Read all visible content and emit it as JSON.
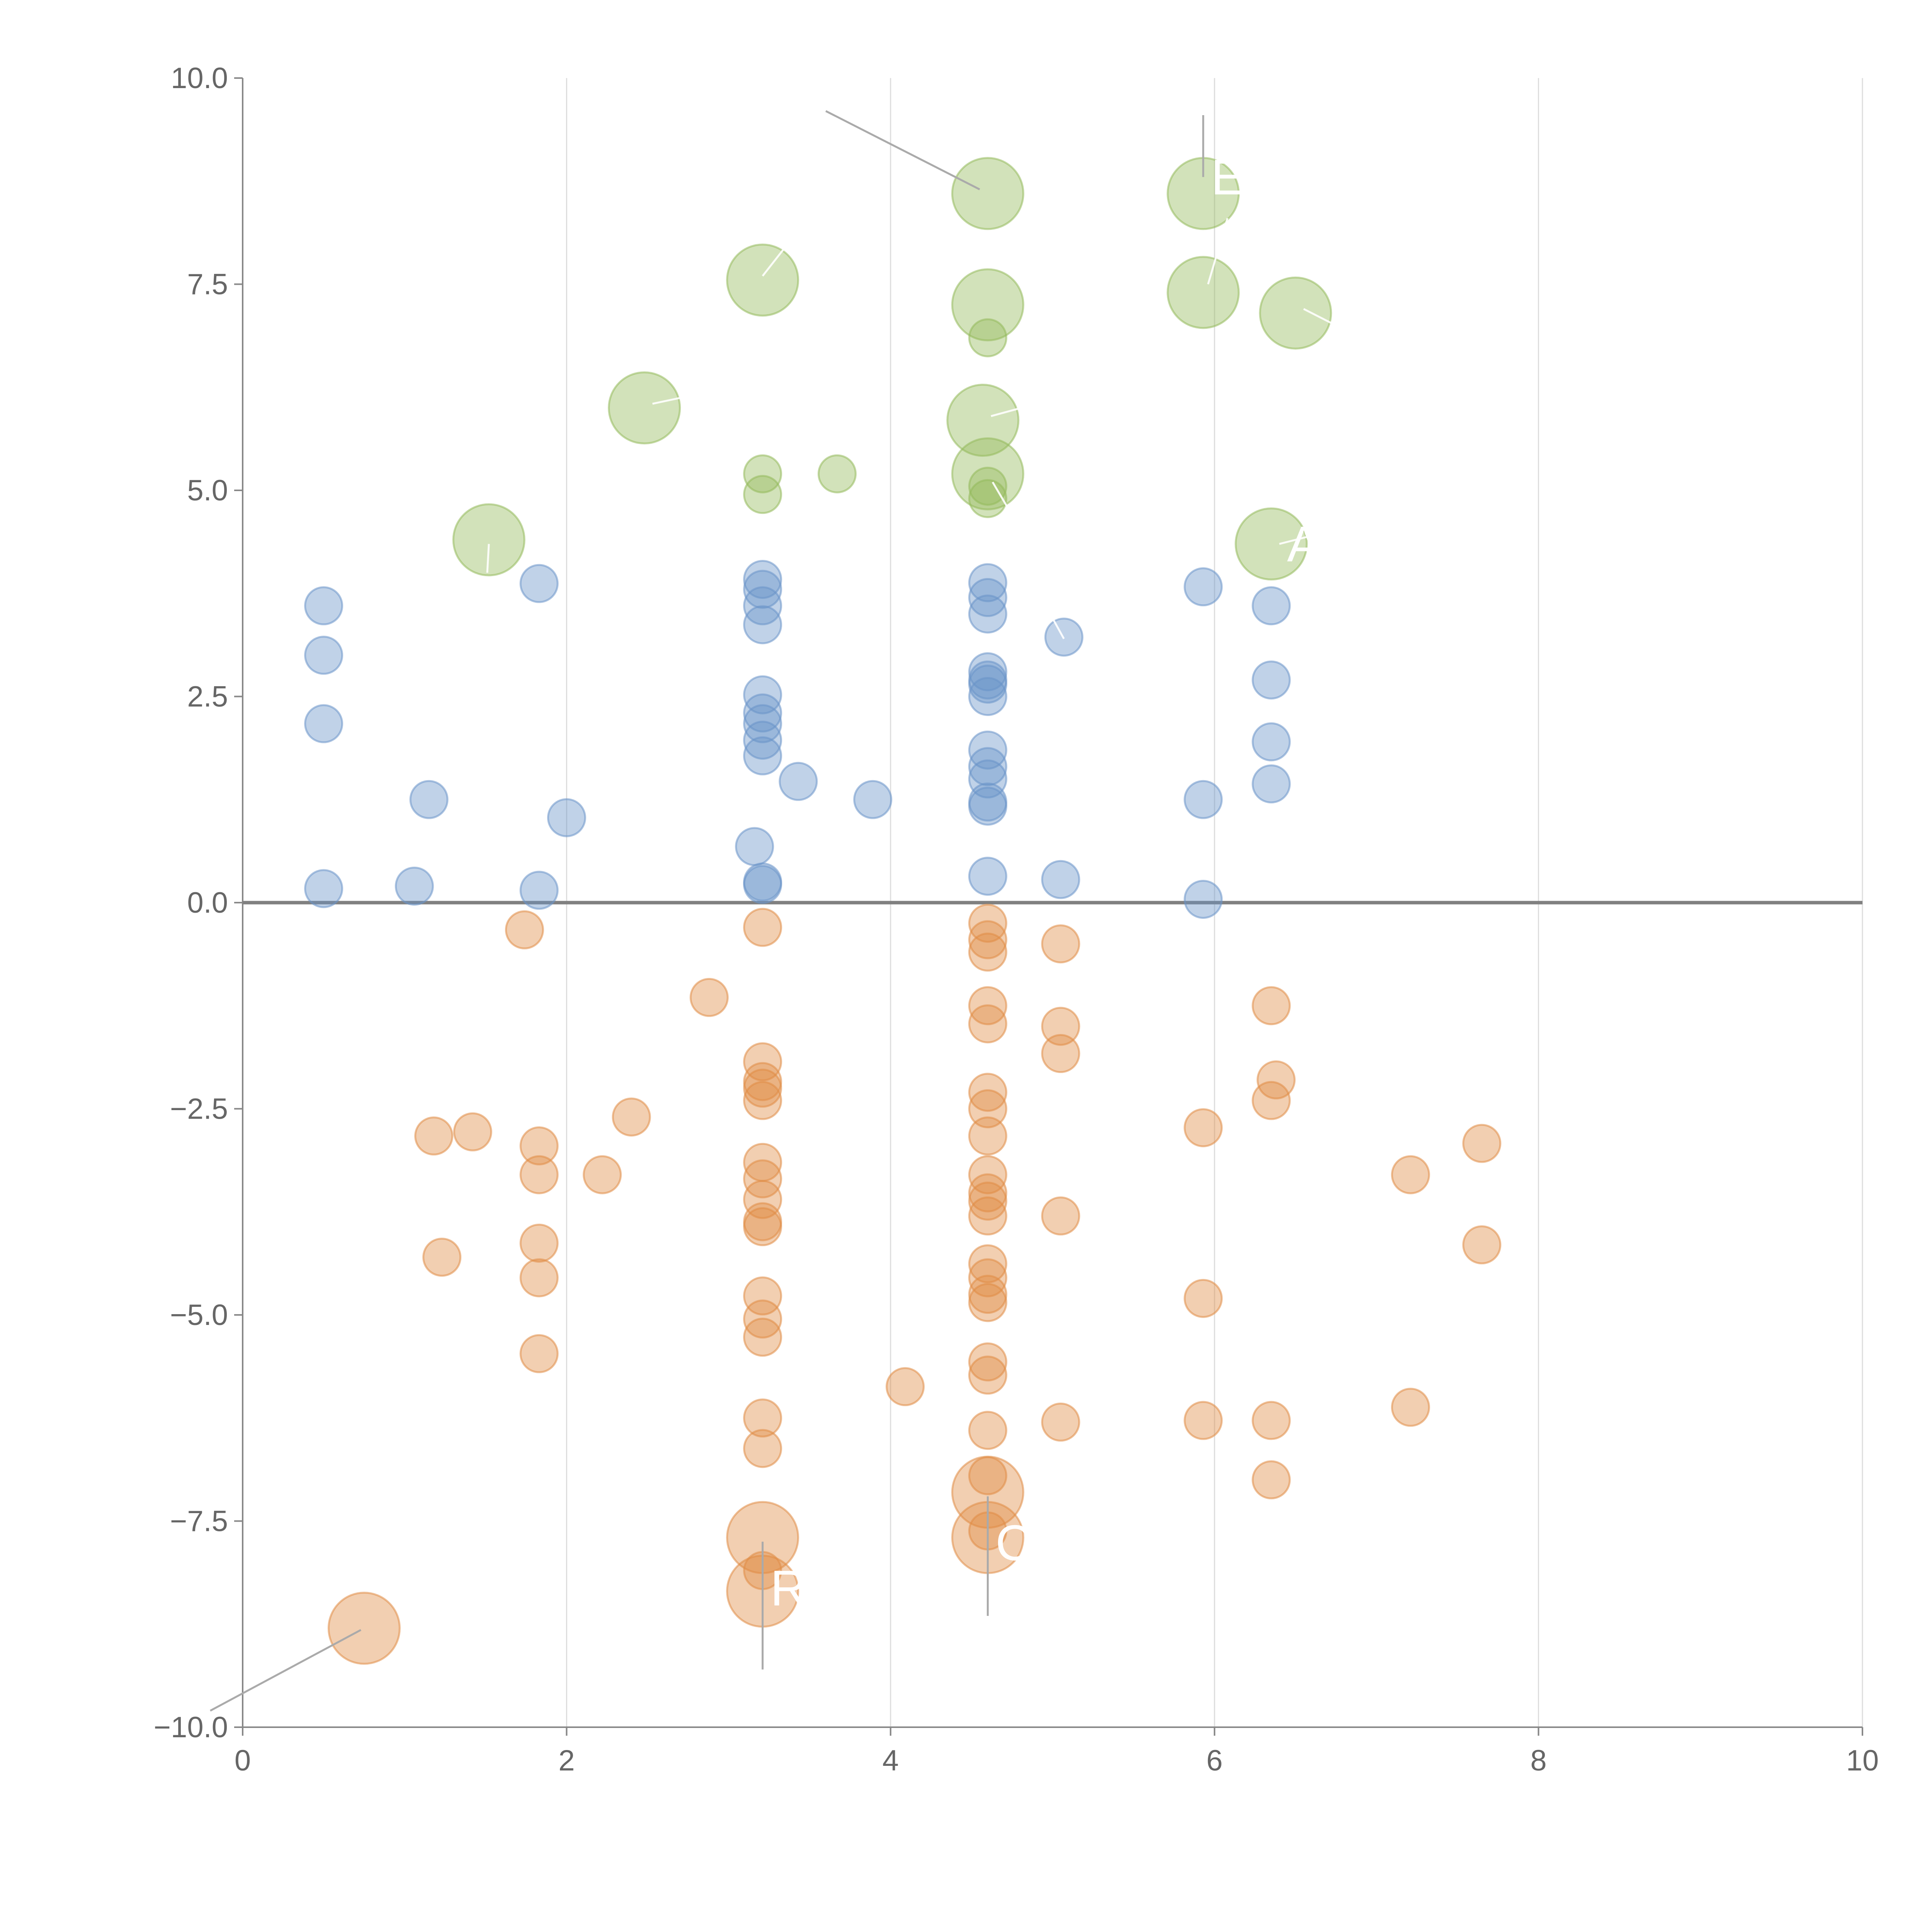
{
  "chart_data": {
    "type": "scatter",
    "title": "",
    "xlabel": "",
    "ylabel": "",
    "xlim": [
      0,
      10
    ],
    "ylim": [
      -10,
      10
    ],
    "xticks": [
      0,
      2,
      4,
      6,
      8,
      10
    ],
    "xtick_labels": [
      "0",
      "2",
      "4",
      "6",
      "8",
      "10"
    ],
    "yticks": [
      10,
      7.5,
      5,
      2.5,
      0,
      -2.5,
      -5,
      -7.5,
      -10
    ],
    "ytick_labels": [
      "10.0",
      "7.5",
      "5.0",
      "2.5",
      "0.0",
      "−2.5",
      "−5.0",
      "−7.5",
      "−10.0"
    ],
    "grid": "vertical",
    "zero_line": 0,
    "colors": {
      "green": "#93b95b",
      "blue": "#6a93c9",
      "orange": "#e08c45",
      "grid": "#dddddd",
      "axis": "#888888",
      "zero": "#808080",
      "leader": "#aaaaaa"
    },
    "series": [
      {
        "name": "high",
        "color": "#93b95b",
        "points": [
          [
            4.6,
            8.6,
            2
          ],
          [
            5.93,
            8.6,
            2
          ],
          [
            3.21,
            7.55,
            2
          ],
          [
            4.6,
            7.25,
            2
          ],
          [
            5.93,
            7.4,
            2
          ],
          [
            6.5,
            7.15,
            2
          ],
          [
            4.6,
            6.85,
            0.5
          ],
          [
            2.48,
            6.0,
            2
          ],
          [
            4.57,
            5.85,
            2
          ],
          [
            3.21,
            5.2,
            0.5
          ],
          [
            3.67,
            5.2,
            0.5
          ],
          [
            4.6,
            5.2,
            2
          ],
          [
            4.6,
            5.05,
            0.5
          ],
          [
            4.6,
            4.9,
            0.5
          ],
          [
            3.21,
            4.95,
            0.5
          ],
          [
            1.52,
            4.4,
            2
          ],
          [
            6.35,
            4.35,
            2
          ]
        ]
      },
      {
        "name": "mid",
        "color": "#6a93c9",
        "points": [
          [
            0.5,
            3.6,
            0.5
          ],
          [
            0.5,
            3.0,
            0.5
          ],
          [
            0.5,
            2.17,
            0.5
          ],
          [
            1.83,
            3.87,
            0.5
          ],
          [
            3.21,
            3.92,
            0.5
          ],
          [
            3.21,
            3.8,
            0.5
          ],
          [
            3.21,
            3.6,
            0.5
          ],
          [
            3.21,
            3.37,
            0.5
          ],
          [
            4.6,
            3.88,
            0.5
          ],
          [
            4.6,
            3.7,
            0.5
          ],
          [
            4.6,
            3.5,
            0.5
          ],
          [
            5.07,
            3.22,
            0.5
          ],
          [
            5.93,
            3.83,
            0.5
          ],
          [
            6.35,
            3.6,
            0.5
          ],
          [
            3.21,
            2.52,
            0.5
          ],
          [
            3.21,
            2.3,
            0.5
          ],
          [
            3.21,
            2.17,
            0.5
          ],
          [
            3.21,
            1.97,
            0.5
          ],
          [
            3.21,
            1.78,
            0.5
          ],
          [
            4.6,
            2.8,
            0.5
          ],
          [
            4.6,
            2.7,
            0.5
          ],
          [
            4.6,
            2.65,
            0.5
          ],
          [
            4.6,
            2.5,
            0.5
          ],
          [
            6.35,
            2.7,
            0.5
          ],
          [
            6.35,
            1.95,
            0.5
          ],
          [
            6.35,
            1.44,
            0.5
          ],
          [
            4.6,
            1.85,
            0.5
          ],
          [
            4.6,
            1.65,
            0.5
          ],
          [
            4.6,
            1.5,
            0.5
          ],
          [
            4.6,
            1.22,
            0.5
          ],
          [
            4.6,
            1.17,
            0.5
          ],
          [
            3.43,
            1.47,
            0.5
          ],
          [
            1.15,
            1.25,
            0.5
          ],
          [
            3.89,
            1.25,
            0.5
          ],
          [
            5.93,
            1.25,
            0.5
          ],
          [
            2.0,
            1.03,
            0.5
          ],
          [
            3.16,
            0.68,
            0.5
          ],
          [
            3.21,
            0.25,
            0.5
          ],
          [
            3.21,
            0.22,
            0.5
          ],
          [
            4.6,
            0.32,
            0.5
          ],
          [
            5.05,
            0.28,
            0.5
          ],
          [
            0.5,
            0.17,
            0.5
          ],
          [
            1.06,
            0.2,
            0.5
          ],
          [
            1.83,
            0.15,
            0.5
          ],
          [
            5.93,
            0.04,
            0.5
          ]
        ]
      },
      {
        "name": "low",
        "color": "#e08c45",
        "points": [
          [
            1.74,
            -0.33,
            0.5
          ],
          [
            3.21,
            -0.3,
            0.5
          ],
          [
            4.6,
            -0.25,
            0.5
          ],
          [
            4.6,
            -0.45,
            0.5
          ],
          [
            4.6,
            -0.6,
            0.5
          ],
          [
            5.05,
            -0.5,
            0.5
          ],
          [
            2.88,
            -1.15,
            0.5
          ],
          [
            4.6,
            -1.25,
            0.5
          ],
          [
            4.6,
            -1.47,
            0.5
          ],
          [
            5.05,
            -1.5,
            0.5
          ],
          [
            5.05,
            -1.83,
            0.5
          ],
          [
            6.35,
            -1.25,
            0.5
          ],
          [
            3.21,
            -1.93,
            0.5
          ],
          [
            3.21,
            -2.17,
            0.5
          ],
          [
            3.21,
            -2.25,
            0.5
          ],
          [
            3.21,
            -2.4,
            0.5
          ],
          [
            4.6,
            -2.3,
            0.5
          ],
          [
            4.6,
            -2.5,
            0.5
          ],
          [
            4.6,
            -2.83,
            0.5
          ],
          [
            6.38,
            -2.15,
            0.5
          ],
          [
            6.35,
            -2.4,
            0.5
          ],
          [
            5.93,
            -2.73,
            0.5
          ],
          [
            7.65,
            -2.92,
            0.5
          ],
          [
            2.4,
            -2.6,
            0.5
          ],
          [
            1.18,
            -2.83,
            0.5
          ],
          [
            1.42,
            -2.78,
            0.5
          ],
          [
            1.83,
            -2.95,
            0.5
          ],
          [
            1.83,
            -3.3,
            0.5
          ],
          [
            2.22,
            -3.3,
            0.5
          ],
          [
            7.21,
            -3.3,
            0.5
          ],
          [
            3.21,
            -3.15,
            0.5
          ],
          [
            3.21,
            -3.35,
            0.5
          ],
          [
            3.21,
            -3.6,
            0.5
          ],
          [
            3.21,
            -3.87,
            0.5
          ],
          [
            3.21,
            -3.93,
            0.5
          ],
          [
            4.6,
            -3.3,
            0.5
          ],
          [
            4.6,
            -3.52,
            0.5
          ],
          [
            4.6,
            -3.62,
            0.5
          ],
          [
            4.6,
            -3.8,
            0.5
          ],
          [
            5.05,
            -3.8,
            0.5
          ],
          [
            1.83,
            -4.13,
            0.5
          ],
          [
            1.83,
            -4.55,
            0.5
          ],
          [
            1.23,
            -4.3,
            0.5
          ],
          [
            7.65,
            -4.15,
            0.5
          ],
          [
            4.6,
            -4.38,
            0.5
          ],
          [
            4.6,
            -4.55,
            0.5
          ],
          [
            4.6,
            -4.75,
            0.5
          ],
          [
            4.6,
            -4.85,
            0.5
          ],
          [
            5.93,
            -4.8,
            0.5
          ],
          [
            3.21,
            -4.77,
            0.5
          ],
          [
            3.21,
            -5.05,
            0.5
          ],
          [
            3.21,
            -5.27,
            0.5
          ],
          [
            1.83,
            -5.47,
            0.5
          ],
          [
            4.6,
            -5.57,
            0.5
          ],
          [
            4.6,
            -5.73,
            0.5
          ],
          [
            4.09,
            -5.87,
            0.5
          ],
          [
            7.21,
            -6.12,
            0.5
          ],
          [
            3.21,
            -6.25,
            0.5
          ],
          [
            5.05,
            -6.3,
            0.5
          ],
          [
            5.93,
            -6.28,
            0.5
          ],
          [
            6.35,
            -6.28,
            0.5
          ],
          [
            4.6,
            -6.4,
            0.5
          ],
          [
            3.21,
            -6.62,
            0.5
          ],
          [
            4.6,
            -6.95,
            0.5
          ],
          [
            6.35,
            -7.0,
            0.5
          ],
          [
            4.6,
            -7.15,
            2
          ],
          [
            4.6,
            -7.62,
            0.5
          ],
          [
            4.6,
            -7.7,
            2
          ],
          [
            3.21,
            -7.7,
            2
          ],
          [
            3.21,
            -8.1,
            0.5
          ],
          [
            3.21,
            -8.35,
            2
          ],
          [
            0.75,
            -8.8,
            2
          ]
        ]
      }
    ],
    "annotations": [
      {
        "text": "",
        "from": [
          4.55,
          8.65
        ],
        "to": [
          3.6,
          9.6
        ]
      },
      {
        "text": "El",
        "from": [
          5.93,
          8.8
        ],
        "to": [
          5.93,
          9.55
        ]
      },
      {
        "text": "",
        "from": [
          5.96,
          7.5
        ],
        "to": [
          6.08,
          8.3
        ]
      },
      {
        "text": "",
        "from": [
          3.21,
          7.6
        ],
        "to": [
          3.35,
          7.95
        ]
      },
      {
        "text": "",
        "from": [
          6.55,
          7.2
        ],
        "to": [
          6.8,
          6.95
        ]
      },
      {
        "text": "",
        "from": [
          2.53,
          6.05
        ],
        "to": [
          2.77,
          6.15
        ]
      },
      {
        "text": "",
        "from": [
          4.62,
          5.9
        ],
        "to": [
          4.9,
          6.05
        ]
      },
      {
        "text": "",
        "from": [
          4.63,
          5.1
        ],
        "to": [
          4.72,
          4.8
        ]
      },
      {
        "text": "",
        "from": [
          1.52,
          4.35
        ],
        "to": [
          1.51,
          4.0
        ]
      },
      {
        "text": "A",
        "from": [
          6.4,
          4.35
        ],
        "to": [
          6.6,
          4.45
        ]
      },
      {
        "text": "",
        "from": [
          5.07,
          3.2
        ],
        "to": [
          5.0,
          3.45
        ]
      },
      {
        "text": "C",
        "from": [
          4.6,
          -7.2
        ],
        "to": [
          4.6,
          -8.65
        ]
      },
      {
        "text": "R",
        "from": [
          3.21,
          -7.75
        ],
        "to": [
          3.21,
          -9.3
        ]
      },
      {
        "text": "",
        "from": [
          0.73,
          -8.82
        ],
        "to": [
          -0.2,
          -9.8
        ]
      }
    ]
  }
}
